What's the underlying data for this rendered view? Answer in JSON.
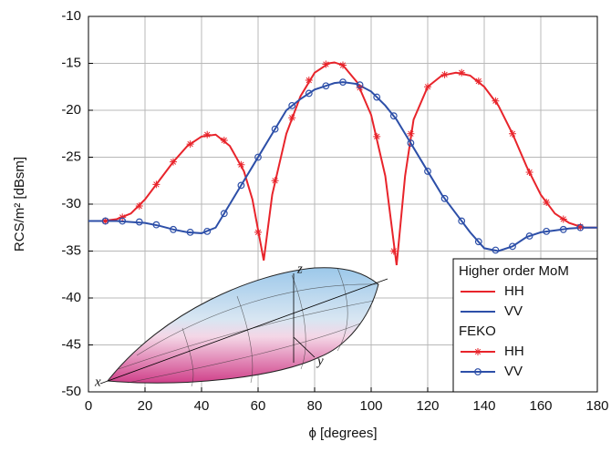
{
  "chart_data": {
    "type": "line",
    "xlabel": "ϕ [degrees]",
    "ylabel": "RCS/m² [dBsm]",
    "xlim": [
      0,
      180
    ],
    "xticks": [
      0,
      20,
      40,
      60,
      80,
      100,
      120,
      140,
      160,
      180
    ],
    "ylim": [
      -50,
      -10
    ],
    "yticks": [
      -50,
      -45,
      -40,
      -35,
      -30,
      -25,
      -20,
      -15,
      -10
    ],
    "grid": true,
    "legend_position": "lower right",
    "legend_groups": [
      "Higher order MoM",
      "FEKO"
    ],
    "annotations": [
      "x",
      "y",
      "z"
    ],
    "series": [
      {
        "name": "HH",
        "group": "Higher order MoM",
        "color": "#e8242b",
        "marker": "none",
        "x": [
          0,
          5,
          10,
          15,
          20,
          25,
          30,
          35,
          40,
          45,
          50,
          55,
          58,
          62,
          65,
          70,
          75,
          80,
          85,
          87,
          90,
          95,
          100,
          105,
          109,
          112,
          115,
          120,
          125,
          130,
          135,
          140,
          145,
          150,
          155,
          160,
          165,
          170,
          175,
          180
        ],
        "values": [
          -31.8,
          -31.8,
          -31.6,
          -31,
          -29.5,
          -27.5,
          -25.5,
          -23.8,
          -22.8,
          -22.6,
          -23.8,
          -26.5,
          -29.5,
          -36,
          -29,
          -22.5,
          -18.5,
          -16,
          -15,
          -14.9,
          -15.2,
          -17,
          -20.5,
          -27,
          -36.5,
          -27,
          -21,
          -17.5,
          -16.3,
          -16,
          -16.3,
          -17.5,
          -19.5,
          -22.5,
          -26,
          -29,
          -31,
          -32,
          -32.5,
          -32.5
        ]
      },
      {
        "name": "VV",
        "group": "Higher order MoM",
        "color": "#2d4fa8",
        "marker": "none",
        "x": [
          0,
          5,
          10,
          15,
          20,
          25,
          30,
          35,
          40,
          45,
          50,
          55,
          58,
          62,
          65,
          70,
          75,
          80,
          85,
          87,
          90,
          95,
          100,
          105,
          109,
          112,
          115,
          120,
          125,
          130,
          135,
          140,
          145,
          150,
          155,
          160,
          165,
          170,
          175,
          180
        ],
        "values": [
          -31.8,
          -31.8,
          -31.8,
          -31.9,
          -32,
          -32.3,
          -32.7,
          -33,
          -33.1,
          -32.5,
          -30,
          -27.5,
          -26,
          -24,
          -22.5,
          -20,
          -18.8,
          -17.8,
          -17.3,
          -17.1,
          -17,
          -17.2,
          -18,
          -19.5,
          -21,
          -22.5,
          -24,
          -26.5,
          -29,
          -31,
          -33,
          -34.7,
          -35,
          -34.5,
          -33.5,
          -33,
          -32.8,
          -32.6,
          -32.5,
          -32.5
        ]
      },
      {
        "name": "HH",
        "group": "FEKO",
        "color": "#e8242b",
        "marker": "asterisk",
        "x": [
          6,
          12,
          18,
          24,
          30,
          36,
          42,
          48,
          54,
          60,
          66,
          72,
          78,
          84,
          90,
          96,
          102,
          108,
          114,
          120,
          126,
          132,
          138,
          144,
          150,
          156,
          162,
          168,
          174
        ],
        "values": [
          -31.8,
          -31.4,
          -30.2,
          -27.9,
          -25.5,
          -23.6,
          -22.6,
          -23.2,
          -25.8,
          -33,
          -27.5,
          -20.8,
          -16.8,
          -15.1,
          -15.2,
          -17.6,
          -22.8,
          -35,
          -22.5,
          -17.5,
          -16.2,
          -16,
          -16.9,
          -19,
          -22.5,
          -26.6,
          -29.8,
          -31.6,
          -32.4
        ]
      },
      {
        "name": "VV",
        "group": "FEKO",
        "color": "#2d4fa8",
        "marker": "circle",
        "x": [
          6,
          12,
          18,
          24,
          30,
          36,
          42,
          48,
          54,
          60,
          66,
          72,
          78,
          84,
          90,
          96,
          102,
          108,
          114,
          120,
          126,
          132,
          138,
          144,
          150,
          156,
          162,
          168,
          174
        ],
        "values": [
          -31.8,
          -31.8,
          -31.9,
          -32.2,
          -32.7,
          -33,
          -32.9,
          -31,
          -28,
          -25,
          -22,
          -19.5,
          -18.2,
          -17.4,
          -17,
          -17.3,
          -18.6,
          -20.6,
          -23.5,
          -26.5,
          -29.4,
          -31.8,
          -34,
          -34.9,
          -34.5,
          -33.4,
          -32.9,
          -32.7,
          -32.5
        ]
      }
    ]
  }
}
